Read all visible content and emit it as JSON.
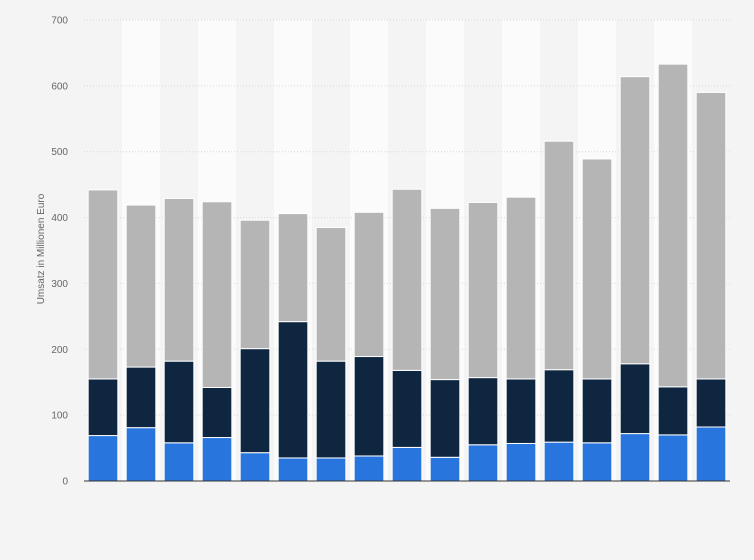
{
  "chart_data": {
    "type": "bar",
    "stacked": true,
    "title": "",
    "xlabel": "",
    "ylabel": "Umsatz in Millionen Euro",
    "ylim": [
      0,
      700
    ],
    "yticks": [
      0,
      100,
      200,
      300,
      400,
      500,
      600,
      700
    ],
    "grid": true,
    "legend": "none",
    "categories": [
      "",
      "",
      "",
      "",
      "",
      "",
      "",
      "",
      "",
      "",
      "",
      "",
      "",
      "",
      "",
      "",
      ""
    ],
    "series": [
      {
        "color": "#2876dd",
        "values": [
          69,
          81,
          58,
          66,
          43,
          35,
          35,
          38,
          51,
          36,
          55,
          57,
          59,
          58,
          72,
          70,
          82
        ]
      },
      {
        "color": "#0f2641",
        "values": [
          86,
          92,
          124,
          76,
          158,
          207,
          147,
          151,
          117,
          118,
          102,
          98,
          110,
          97,
          106,
          73,
          73
        ]
      },
      {
        "color": "#b5b5b5",
        "values": [
          287,
          246,
          247,
          282,
          195,
          164,
          203,
          219,
          275,
          260,
          266,
          276,
          347,
          334,
          436,
          490,
          435
        ]
      }
    ]
  }
}
